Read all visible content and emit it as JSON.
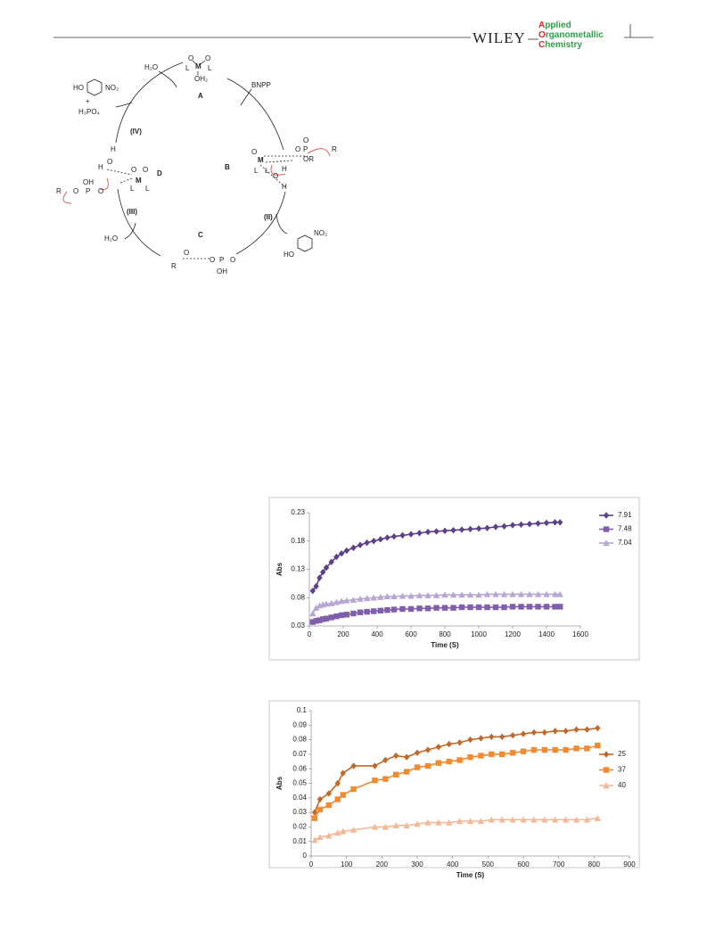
{
  "header": {
    "publisher": "WILEY",
    "journal": [
      "Applied",
      "Organometallic",
      "Chemistry"
    ]
  },
  "scheme": {
    "labels": [
      "H₂O",
      "BNPP",
      "A",
      "HO",
      "NO₂",
      "+",
      "H₃PO₄",
      "(IV)",
      "B",
      "(II)",
      "C",
      "(III)",
      "D",
      "H₂O",
      "HO",
      "NO₂",
      "O",
      "O",
      "M",
      "L",
      "L",
      "OH₂",
      "M",
      "O",
      "O",
      "P",
      "O",
      "OR",
      "R",
      "L",
      "L",
      "H",
      "O",
      "H",
      "M",
      "O",
      "O",
      "L",
      "L",
      "O",
      "P",
      "O",
      "R",
      "OH",
      "H",
      "O",
      "H",
      "R",
      "O",
      "P",
      "O",
      "OH",
      "O"
    ]
  },
  "chart_data": [
    {
      "type": "line",
      "xlabel": "Time (S)",
      "ylabel": "Abs",
      "x": [
        20,
        40,
        60,
        80,
        100,
        130,
        160,
        190,
        220,
        260,
        300,
        340,
        380,
        420,
        460,
        500,
        550,
        600,
        650,
        700,
        750,
        800,
        850,
        900,
        950,
        1000,
        1050,
        1100,
        1150,
        1200,
        1250,
        1300,
        1350,
        1400,
        1450,
        1480
      ],
      "xlim": [
        0,
        1600
      ],
      "xticks": [
        0,
        200,
        400,
        600,
        800,
        1000,
        1200,
        1400,
        1600
      ],
      "ylim": [
        0.03,
        0.23
      ],
      "yticks": [
        0.03,
        0.08,
        0.13,
        0.18,
        0.23
      ],
      "grid": false,
      "series": [
        {
          "name": "7.91",
          "color": "#5e3f8c",
          "marker": "diamond",
          "values": [
            0.092,
            0.1,
            0.115,
            0.125,
            0.133,
            0.143,
            0.152,
            0.158,
            0.163,
            0.168,
            0.173,
            0.177,
            0.18,
            0.183,
            0.186,
            0.188,
            0.19,
            0.192,
            0.194,
            0.196,
            0.197,
            0.198,
            0.199,
            0.2,
            0.201,
            0.202,
            0.203,
            0.205,
            0.206,
            0.208,
            0.209,
            0.21,
            0.211,
            0.212,
            0.213,
            0.213
          ]
        },
        {
          "name": "7.48",
          "color": "#7f5fac",
          "marker": "square",
          "values": [
            0.037,
            0.039,
            0.04,
            0.042,
            0.043,
            0.045,
            0.047,
            0.049,
            0.05,
            0.052,
            0.054,
            0.055,
            0.056,
            0.057,
            0.058,
            0.059,
            0.06,
            0.06,
            0.061,
            0.061,
            0.062,
            0.062,
            0.062,
            0.063,
            0.063,
            0.063,
            0.063,
            0.063,
            0.063,
            0.064,
            0.064,
            0.064,
            0.064,
            0.064,
            0.064,
            0.064
          ]
        },
        {
          "name": "7.04",
          "color": "#b7a6d2",
          "marker": "triangle",
          "values": [
            0.052,
            0.062,
            0.066,
            0.068,
            0.069,
            0.07,
            0.072,
            0.074,
            0.075,
            0.076,
            0.078,
            0.079,
            0.08,
            0.081,
            0.082,
            0.082,
            0.083,
            0.083,
            0.084,
            0.084,
            0.084,
            0.085,
            0.085,
            0.085,
            0.085,
            0.085,
            0.086,
            0.086,
            0.086,
            0.086,
            0.086,
            0.086,
            0.086,
            0.086,
            0.086,
            0.086
          ]
        }
      ],
      "legend": "right"
    },
    {
      "type": "line",
      "xlabel": "Time (S)",
      "ylabel": "Abs",
      "x": [
        10,
        25,
        50,
        75,
        90,
        120,
        180,
        210,
        240,
        270,
        300,
        330,
        360,
        390,
        420,
        450,
        480,
        510,
        540,
        570,
        600,
        630,
        660,
        690,
        720,
        750,
        780,
        810
      ],
      "xlim": [
        0,
        900
      ],
      "xticks": [
        0,
        100,
        200,
        300,
        400,
        500,
        600,
        700,
        800,
        900
      ],
      "ylim": [
        0,
        0.1
      ],
      "yticks": [
        0,
        0.01,
        0.02,
        0.03,
        0.04,
        0.05,
        0.06,
        0.07,
        0.08,
        0.09,
        0.1
      ],
      "grid": false,
      "series": [
        {
          "name": "25",
          "color": "#c0692a",
          "marker": "diamond",
          "values": [
            0.03,
            0.039,
            0.043,
            0.05,
            0.057,
            0.062,
            0.062,
            0.066,
            0.069,
            0.068,
            0.071,
            0.073,
            0.075,
            0.077,
            0.078,
            0.08,
            0.081,
            0.082,
            0.082,
            0.083,
            0.084,
            0.085,
            0.085,
            0.086,
            0.086,
            0.087,
            0.087,
            0.088
          ]
        },
        {
          "name": "37",
          "color": "#f28a30",
          "marker": "square",
          "values": [
            0.026,
            0.032,
            0.035,
            0.039,
            0.042,
            0.046,
            0.052,
            0.053,
            0.056,
            0.058,
            0.061,
            0.062,
            0.064,
            0.065,
            0.066,
            0.068,
            0.069,
            0.07,
            0.07,
            0.071,
            0.072,
            0.073,
            0.073,
            0.073,
            0.073,
            0.074,
            0.074,
            0.076
          ]
        },
        {
          "name": "40",
          "color": "#f5b896",
          "marker": "triangle",
          "values": [
            0.011,
            0.013,
            0.014,
            0.016,
            0.017,
            0.018,
            0.02,
            0.02,
            0.021,
            0.021,
            0.022,
            0.023,
            0.023,
            0.023,
            0.024,
            0.024,
            0.024,
            0.025,
            0.025,
            0.025,
            0.025,
            0.025,
            0.025,
            0.025,
            0.025,
            0.025,
            0.025,
            0.026
          ]
        }
      ],
      "legend": "right"
    }
  ]
}
